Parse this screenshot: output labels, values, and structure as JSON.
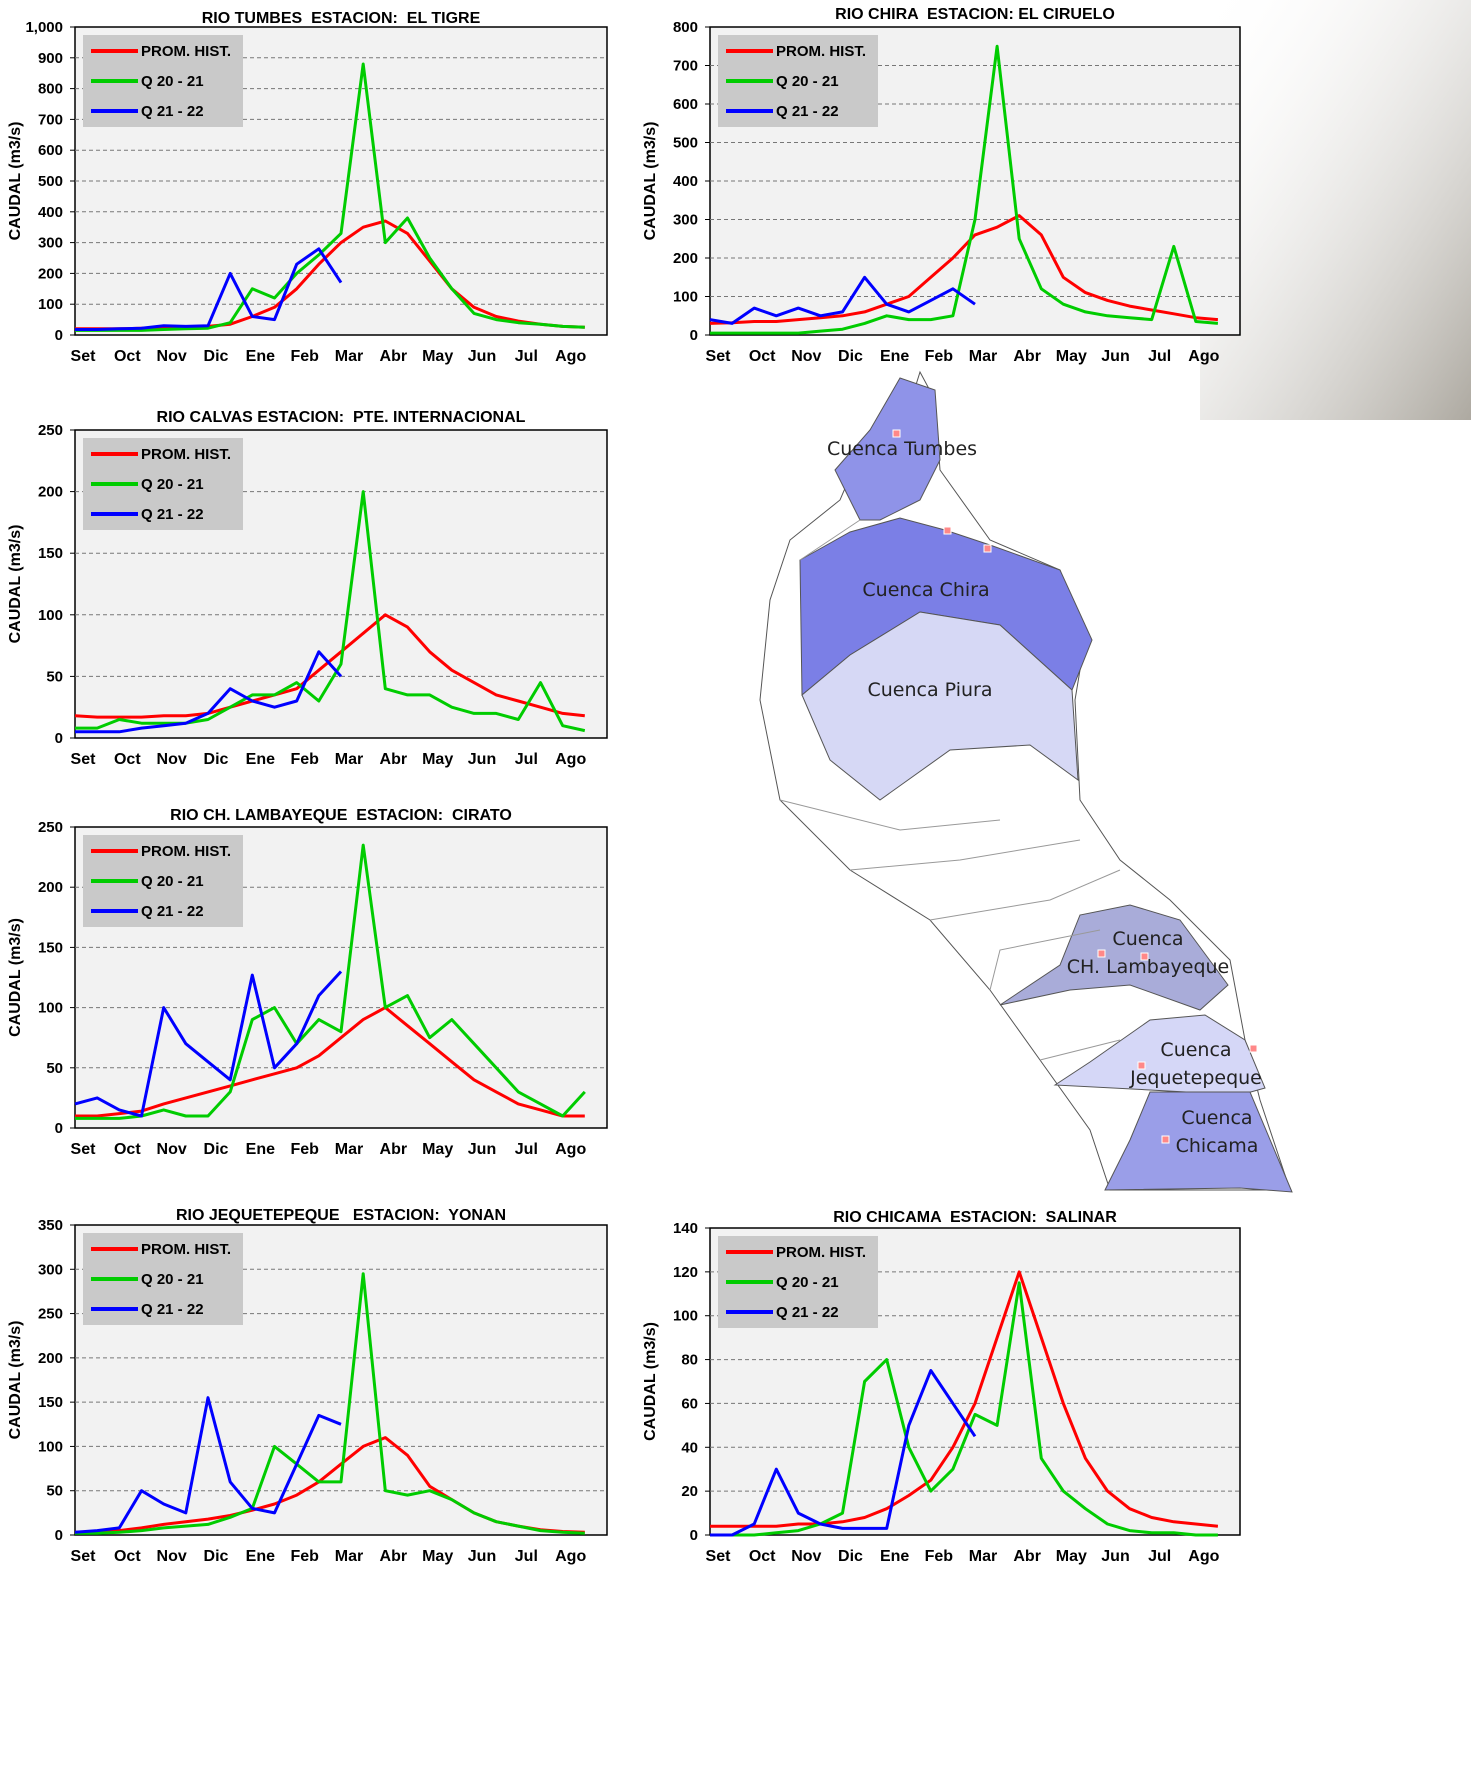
{
  "chart_data": [
    {
      "type": "line",
      "title": "RIO TUMBES  ESTACION:  EL TIGRE",
      "y_label": "CAUDAL (m3/s)",
      "categories": [
        "Set",
        null,
        "Oct",
        null,
        "Nov",
        null,
        "Dic",
        null,
        "Ene",
        null,
        "Feb",
        null,
        "Mar",
        null,
        "Abr",
        null,
        "May",
        null,
        "Jun",
        null,
        "Jul",
        null,
        "Ago",
        null
      ],
      "ylim": [
        0,
        1000
      ],
      "yticks": [
        0,
        100,
        200,
        300,
        400,
        500,
        600,
        700,
        800,
        900,
        {
          "value": 1000,
          "label": "1,000"
        }
      ],
      "grid": true,
      "series": [
        {
          "name": "PROM. HIST.",
          "color": "#ff0000",
          "values": [
            20,
            20,
            20,
            22,
            25,
            25,
            28,
            35,
            60,
            90,
            150,
            230,
            300,
            350,
            370,
            330,
            240,
            150,
            90,
            60,
            45,
            35,
            28,
            25
          ]
        },
        {
          "name": "Q 20 - 21",
          "color": "#00cc00",
          "values": [
            15,
            15,
            15,
            15,
            18,
            20,
            22,
            40,
            150,
            120,
            200,
            260,
            330,
            880,
            300,
            380,
            250,
            150,
            70,
            50,
            40,
            35,
            28,
            25
          ]
        },
        {
          "name": "Q 21 - 22",
          "color": "#0000ff",
          "values": [
            18,
            18,
            20,
            22,
            30,
            28,
            30,
            200,
            60,
            50,
            230,
            280,
            170,
            null,
            null,
            null,
            null,
            null,
            null,
            null,
            null,
            null,
            null,
            null
          ]
        }
      ]
    },
    {
      "type": "line",
      "title": "RIO CHIRA  ESTACION: EL CIRUELO",
      "y_label": "CAUDAL (m3/s)",
      "categories": [
        "Set",
        null,
        "Oct",
        null,
        "Nov",
        null,
        "Dic",
        null,
        "Ene",
        null,
        "Feb",
        null,
        "Mar",
        null,
        "Abr",
        null,
        "May",
        null,
        "Jun",
        null,
        "Jul",
        null,
        "Ago",
        null
      ],
      "ylim": [
        0,
        800
      ],
      "yticks": [
        0,
        100,
        200,
        300,
        400,
        500,
        600,
        700,
        800
      ],
      "grid": true,
      "series": [
        {
          "name": "PROM. HIST.",
          "color": "#ff0000",
          "values": [
            30,
            32,
            35,
            35,
            40,
            45,
            50,
            60,
            80,
            100,
            150,
            200,
            260,
            280,
            310,
            260,
            150,
            110,
            90,
            75,
            65,
            55,
            45,
            40
          ]
        },
        {
          "name": "Q 20 - 21",
          "color": "#00cc00",
          "values": [
            5,
            5,
            5,
            5,
            5,
            10,
            15,
            30,
            50,
            40,
            40,
            50,
            300,
            750,
            250,
            120,
            80,
            60,
            50,
            45,
            40,
            230,
            35,
            30
          ]
        },
        {
          "name": "Q 21 - 22",
          "color": "#0000ff",
          "values": [
            40,
            30,
            70,
            50,
            70,
            50,
            60,
            150,
            80,
            60,
            90,
            120,
            80,
            null,
            null,
            null,
            null,
            null,
            null,
            null,
            null,
            null,
            null,
            null
          ]
        }
      ]
    },
    {
      "type": "line",
      "title": "RIO CALVAS ESTACION:  PTE. INTERNACIONAL",
      "y_label": "CAUDAL (m3/s)",
      "categories": [
        "Set",
        null,
        "Oct",
        null,
        "Nov",
        null,
        "Dic",
        null,
        "Ene",
        null,
        "Feb",
        null,
        "Mar",
        null,
        "Abr",
        null,
        "May",
        null,
        "Jun",
        null,
        "Jul",
        null,
        "Ago",
        null
      ],
      "ylim": [
        0,
        250
      ],
      "yticks": [
        0,
        50,
        100,
        150,
        200,
        250
      ],
      "grid": true,
      "series": [
        {
          "name": "PROM. HIST.",
          "color": "#ff0000",
          "values": [
            18,
            17,
            17,
            17,
            18,
            18,
            20,
            25,
            30,
            35,
            40,
            55,
            70,
            85,
            100,
            90,
            70,
            55,
            45,
            35,
            30,
            25,
            20,
            18
          ]
        },
        {
          "name": "Q 20 - 21",
          "color": "#00cc00",
          "values": [
            8,
            8,
            15,
            12,
            12,
            12,
            15,
            25,
            35,
            35,
            45,
            30,
            60,
            200,
            40,
            35,
            35,
            25,
            20,
            20,
            15,
            45,
            10,
            6
          ]
        },
        {
          "name": "Q 21 - 22",
          "color": "#0000ff",
          "values": [
            5,
            5,
            5,
            8,
            10,
            12,
            20,
            40,
            30,
            25,
            30,
            70,
            50,
            null,
            null,
            null,
            null,
            null,
            null,
            null,
            null,
            null,
            null,
            null
          ]
        }
      ]
    },
    {
      "type": "line",
      "title": "RIO CH. LAMBAYEQUE  ESTACION:  CIRATO",
      "y_label": "CAUDAL (m3/s)",
      "categories": [
        "Set",
        null,
        "Oct",
        null,
        "Nov",
        null,
        "Dic",
        null,
        "Ene",
        null,
        "Feb",
        null,
        "Mar",
        null,
        "Abr",
        null,
        "May",
        null,
        "Jun",
        null,
        "Jul",
        null,
        "Ago",
        null
      ],
      "ylim": [
        0,
        250
      ],
      "yticks": [
        0,
        50,
        100,
        150,
        200,
        250
      ],
      "grid": true,
      "series": [
        {
          "name": "PROM. HIST.",
          "color": "#ff0000",
          "values": [
            10,
            10,
            12,
            14,
            20,
            25,
            30,
            35,
            40,
            45,
            50,
            60,
            75,
            90,
            100,
            85,
            70,
            55,
            40,
            30,
            20,
            15,
            10,
            10
          ]
        },
        {
          "name": "Q 20 - 21",
          "color": "#00cc00",
          "values": [
            8,
            8,
            8,
            10,
            15,
            10,
            10,
            30,
            90,
            100,
            70,
            90,
            80,
            235,
            100,
            110,
            75,
            90,
            70,
            50,
            30,
            20,
            10,
            30
          ]
        },
        {
          "name": "Q 21 - 22",
          "color": "#0000ff",
          "values": [
            20,
            25,
            15,
            10,
            100,
            70,
            55,
            40,
            127,
            50,
            70,
            110,
            130,
            null,
            null,
            null,
            null,
            null,
            null,
            null,
            null,
            null,
            null,
            null
          ]
        }
      ]
    },
    {
      "type": "line",
      "title": "RIO JEQUETEPEQUE   ESTACION:  YONAN",
      "y_label": "CAUDAL (m3/s)",
      "categories": [
        "Set",
        null,
        "Oct",
        null,
        "Nov",
        null,
        "Dic",
        null,
        "Ene",
        null,
        "Feb",
        null,
        "Mar",
        null,
        "Abr",
        null,
        "May",
        null,
        "Jun",
        null,
        "Jul",
        null,
        "Ago",
        null
      ],
      "ylim": [
        0,
        350
      ],
      "yticks": [
        0,
        50,
        100,
        150,
        200,
        250,
        300,
        350
      ],
      "grid": true,
      "series": [
        {
          "name": "PROM. HIST.",
          "color": "#ff0000",
          "values": [
            3,
            3,
            5,
            8,
            12,
            15,
            18,
            22,
            28,
            35,
            45,
            60,
            80,
            100,
            110,
            90,
            55,
            40,
            25,
            15,
            10,
            6,
            4,
            3
          ]
        },
        {
          "name": "Q 20 - 21",
          "color": "#00cc00",
          "values": [
            2,
            2,
            3,
            5,
            8,
            10,
            12,
            20,
            30,
            100,
            80,
            60,
            60,
            295,
            50,
            45,
            50,
            40,
            25,
            15,
            10,
            5,
            3,
            2
          ]
        },
        {
          "name": "Q 21 - 22",
          "color": "#0000ff",
          "values": [
            3,
            5,
            8,
            50,
            35,
            25,
            155,
            60,
            30,
            25,
            80,
            135,
            125,
            null,
            null,
            null,
            null,
            null,
            null,
            null,
            null,
            null,
            null,
            null
          ]
        }
      ]
    },
    {
      "type": "line",
      "title": "RIO CHICAMA  ESTACION:  SALINAR",
      "y_label": "CAUDAL (m3/s)",
      "categories": [
        "Set",
        null,
        "Oct",
        null,
        "Nov",
        null,
        "Dic",
        null,
        "Ene",
        null,
        "Feb",
        null,
        "Mar",
        null,
        "Abr",
        null,
        "May",
        null,
        "Jun",
        null,
        "Jul",
        null,
        "Ago",
        null
      ],
      "ylim": [
        0,
        140
      ],
      "yticks": [
        0,
        20,
        40,
        60,
        80,
        100,
        120,
        140
      ],
      "grid": true,
      "series": [
        {
          "name": "PROM. HIST.",
          "color": "#ff0000",
          "values": [
            4,
            4,
            4,
            4,
            5,
            5,
            6,
            8,
            12,
            18,
            25,
            40,
            60,
            90,
            120,
            90,
            60,
            35,
            20,
            12,
            8,
            6,
            5,
            4
          ]
        },
        {
          "name": "Q 20 - 21",
          "color": "#00cc00",
          "values": [
            0,
            0,
            0,
            1,
            2,
            5,
            10,
            70,
            80,
            40,
            20,
            30,
            55,
            50,
            115,
            35,
            20,
            12,
            5,
            2,
            1,
            1,
            0,
            0
          ]
        },
        {
          "name": "Q 21 - 22",
          "color": "#0000ff",
          "values": [
            0,
            0,
            5,
            30,
            10,
            5,
            3,
            3,
            3,
            50,
            75,
            60,
            45,
            null,
            null,
            null,
            null,
            null,
            null,
            null,
            null,
            null,
            null,
            null
          ]
        }
      ]
    }
  ],
  "map": {
    "labels": [
      "Cuenca Tumbes",
      "Cuenca Chira",
      "Cuenca Piura",
      "Cuenca",
      "CH. Lambayeque",
      "Cuenca",
      "Jequetepeque",
      "Cuenca",
      "Chicama"
    ]
  }
}
